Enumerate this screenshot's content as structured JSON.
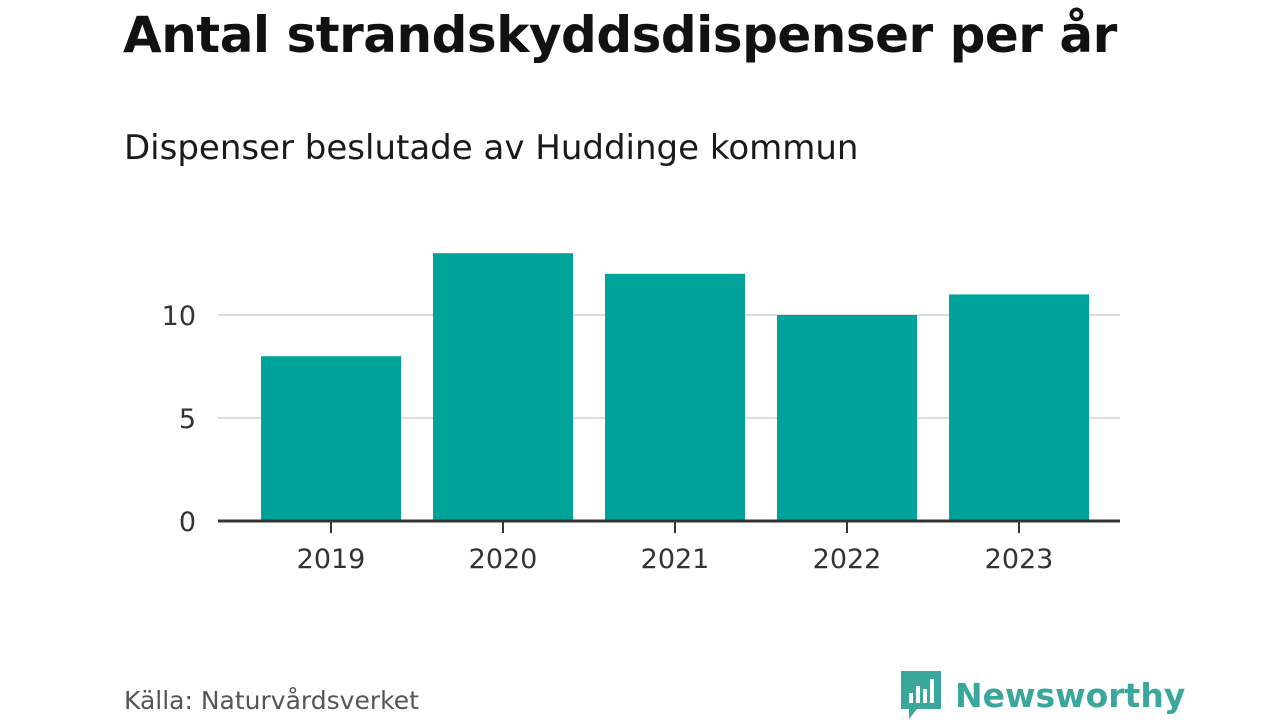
{
  "header": {
    "title": "Antal strandskyddsdispenser per år",
    "subtitle": "Dispenser beslutade av Huddinge kommun"
  },
  "footer": {
    "source": "Källa: Naturvårdsverket",
    "brand": "Newsworthy"
  },
  "colors": {
    "bar": "#00a39a",
    "brand": "#3aa79c",
    "grid": "#dddddd",
    "axis": "#333333"
  },
  "chart_data": {
    "type": "bar",
    "title": "Antal strandskyddsdispenser per år",
    "subtitle": "Dispenser beslutade av Huddinge kommun",
    "categories": [
      "2019",
      "2020",
      "2021",
      "2022",
      "2023"
    ],
    "values": [
      8,
      13,
      12,
      10,
      11
    ],
    "yticks": [
      0,
      5,
      10
    ],
    "ylim": [
      0,
      13
    ],
    "grid": true,
    "legend": "none"
  }
}
